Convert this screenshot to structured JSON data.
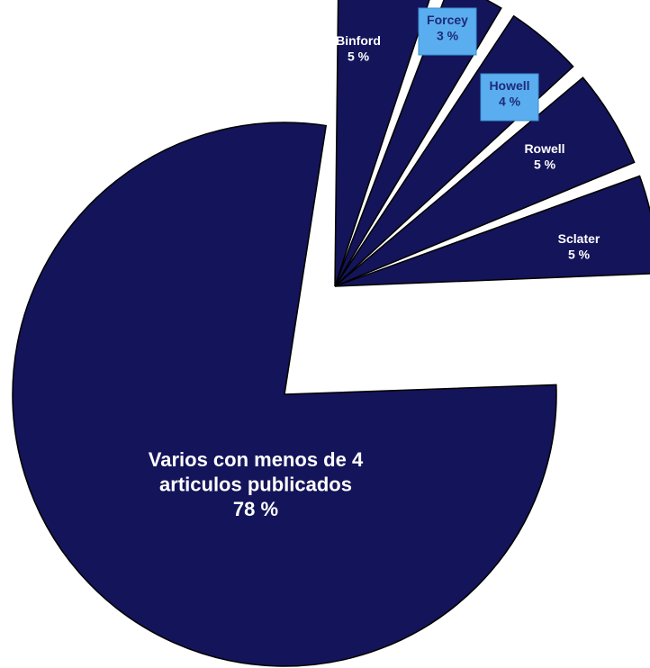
{
  "chart_data": {
    "type": "pie",
    "title": "",
    "slices": [
      {
        "label": "Varios con menos de 4\narticulos publicados",
        "value": 78,
        "value_label": "78 %",
        "exploded": false,
        "label_style": "plain"
      },
      {
        "label": "Binford",
        "value": 5,
        "value_label": "5 %",
        "exploded": true,
        "label_style": "plain"
      },
      {
        "label": "Forcey",
        "value": 3,
        "value_label": "3 %",
        "exploded": true,
        "label_style": "boxed"
      },
      {
        "label": "Howell",
        "value": 4,
        "value_label": "4 %",
        "exploded": true,
        "label_style": "boxed"
      },
      {
        "label": "Rowell",
        "value": 5,
        "value_label": "5 %",
        "exploded": true,
        "label_style": "plain"
      },
      {
        "label": "Sclater",
        "value": 5,
        "value_label": "5 %",
        "exploded": true,
        "label_style": "plain"
      }
    ]
  },
  "colors": {
    "slice_fill": "#14145a",
    "slice_stroke": "#000000",
    "label_text": "#ffffff",
    "label_box_fill": "#5aaeef",
    "label_box_text": "#1e2a78"
  }
}
